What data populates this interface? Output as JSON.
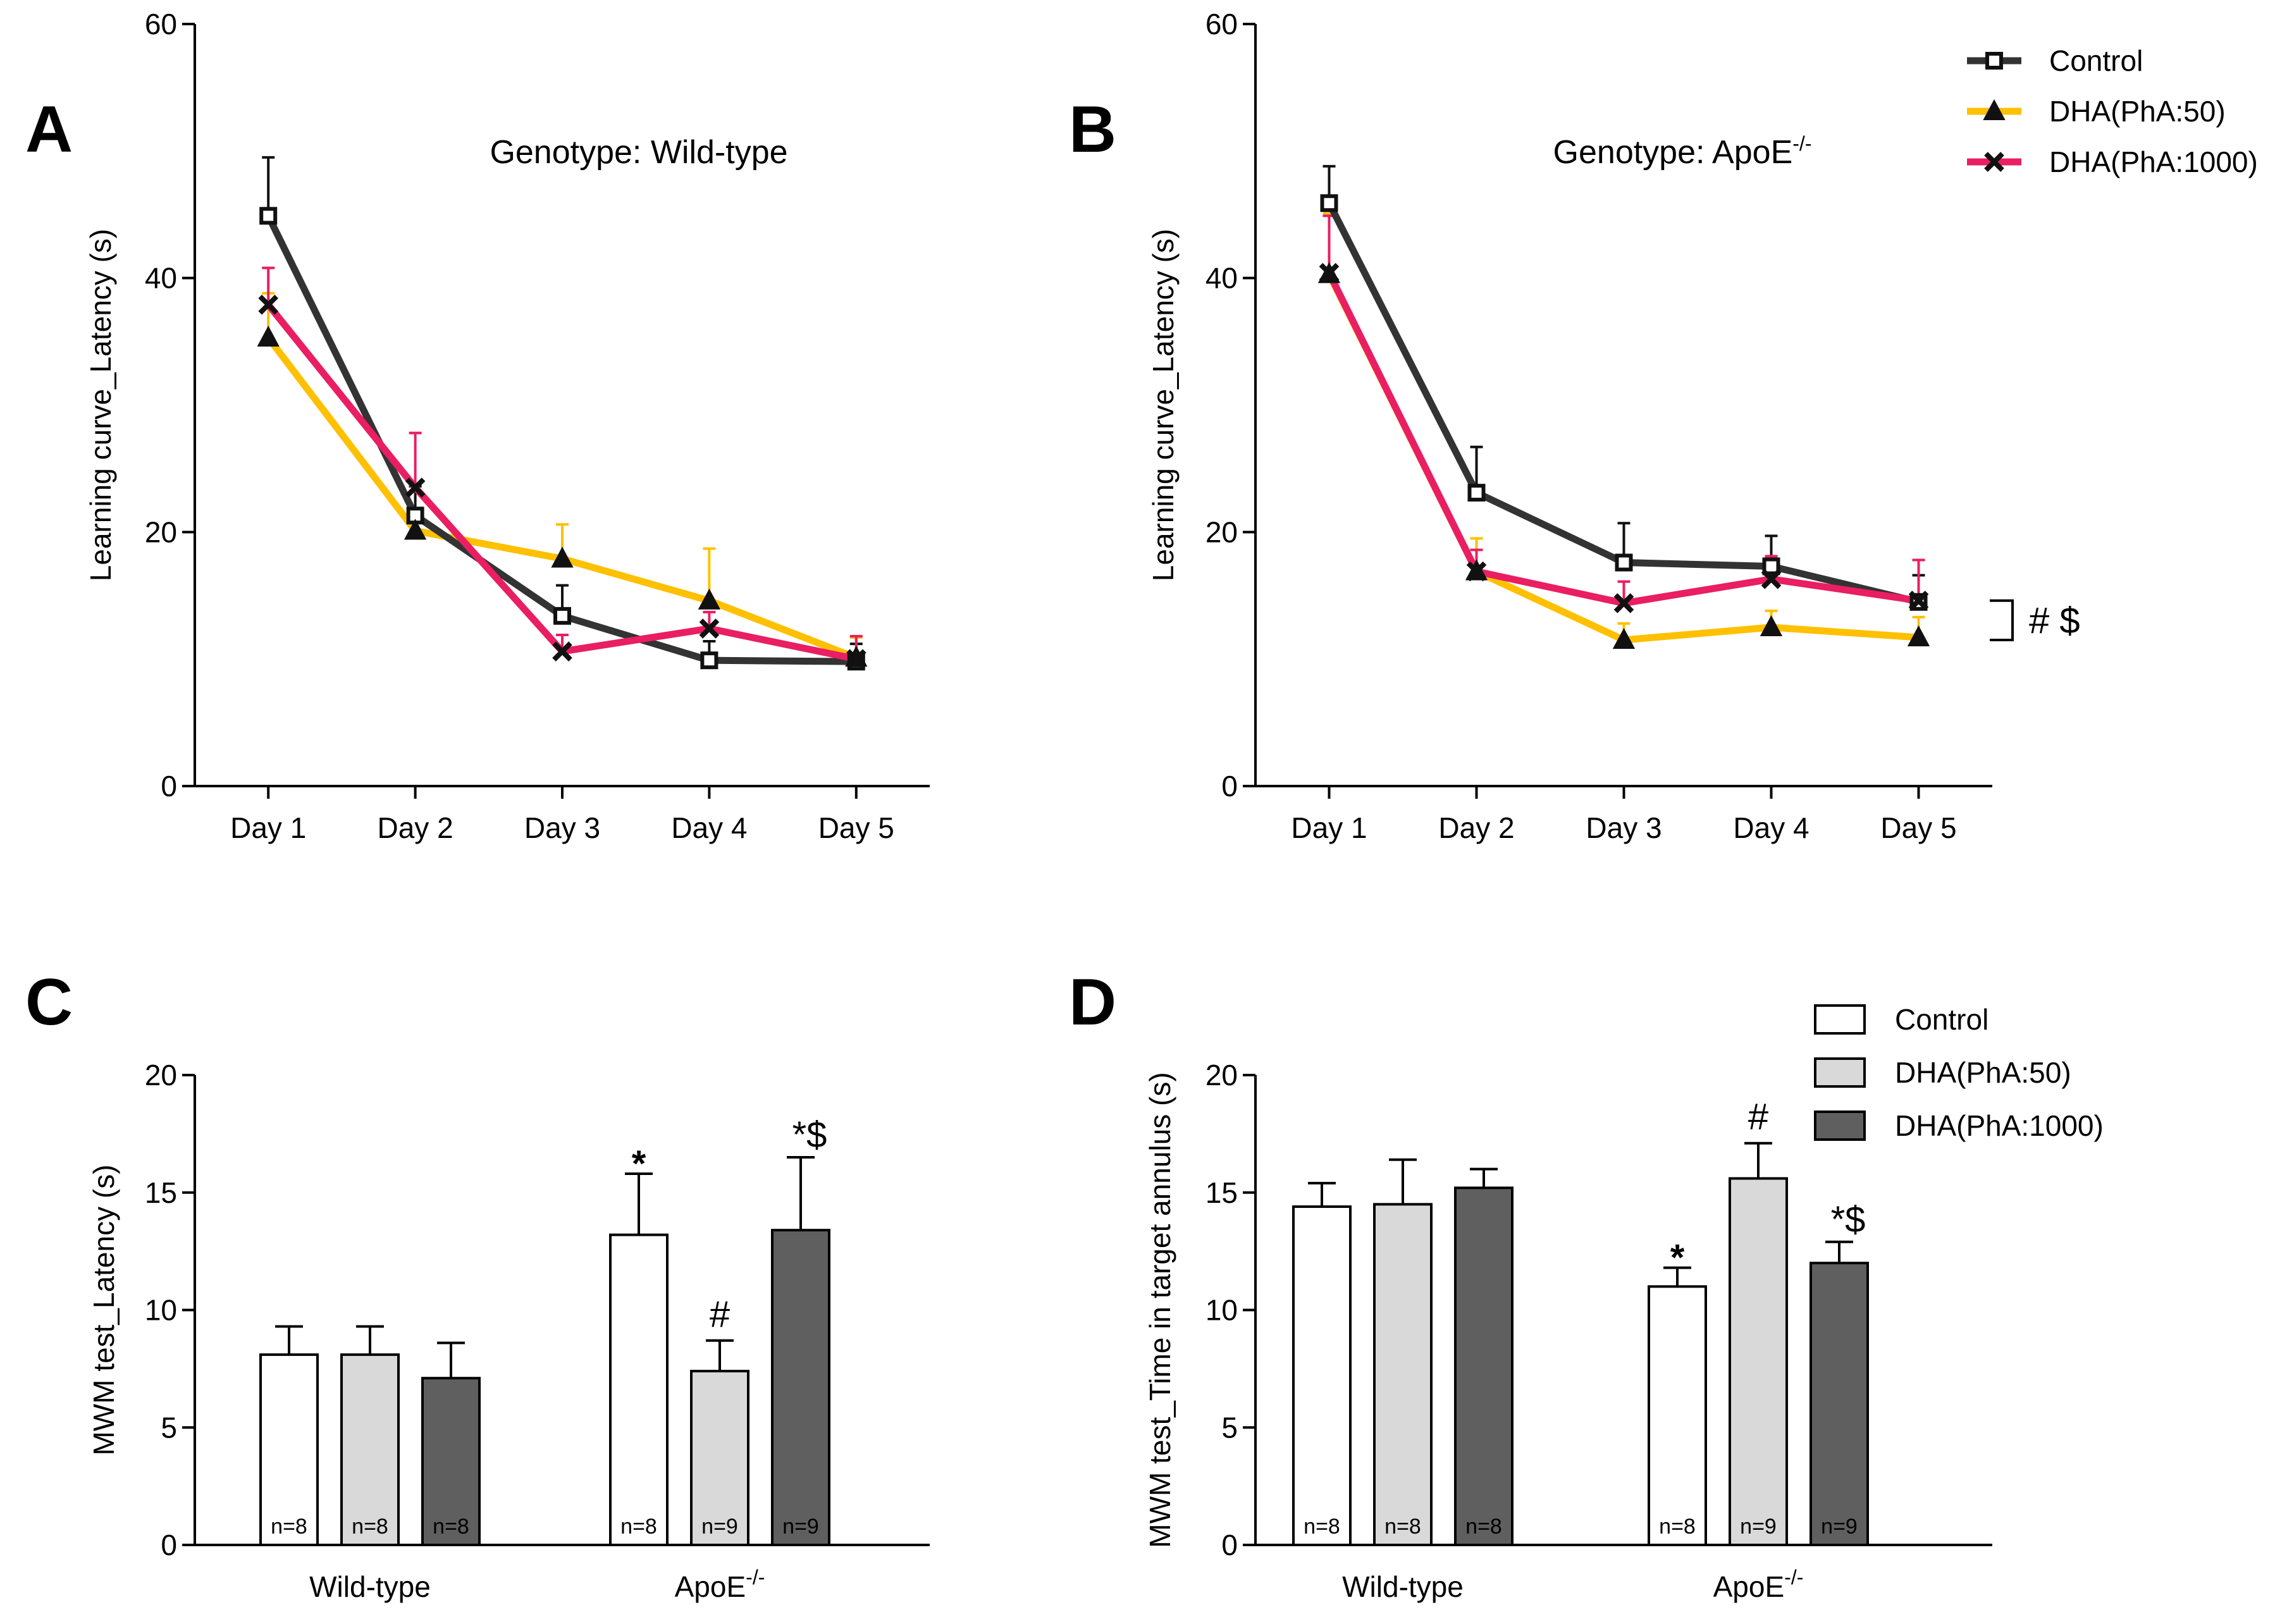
{
  "colors": {
    "control_line": "#333333",
    "dha50_line": "#FFC000",
    "dha1000_line": "#E91E63",
    "control_bar": "#FFFFFF",
    "dha50_bar": "#D9D9D9",
    "dha1000_bar": "#5F5F5F"
  },
  "chart_data": [
    {
      "id": "A",
      "type": "line",
      "panel_label": "A",
      "annotation": "Genotype: Wild-type",
      "ylabel": "Learning curve_Latency (s)",
      "xlabel": "",
      "ylim": [
        0,
        60
      ],
      "yticks": [
        "0",
        "20",
        "40",
        "60"
      ],
      "categories": [
        "Day 1",
        "Day 2",
        "Day 3",
        "Day 4",
        "Day 5"
      ],
      "series": [
        {
          "name": "Control",
          "marker": "square",
          "color": "#333333",
          "values": [
            44.9,
            21.3,
            13.4,
            9.9,
            9.8
          ],
          "errors": [
            4.6,
            2.3,
            2.4,
            1.5,
            1.4
          ]
        },
        {
          "name": "DHA(PhA:50)",
          "marker": "triangle",
          "color": "#FFC000",
          "values": [
            35.3,
            20.1,
            17.9,
            14.6,
            10.1
          ],
          "errors": [
            3.5,
            1.6,
            2.7,
            4.1,
            1.6
          ]
        },
        {
          "name": "DHA(PhA:1000)",
          "marker": "cross",
          "color": "#E91E63",
          "values": [
            37.9,
            23.5,
            10.6,
            12.4,
            10.0
          ],
          "errors": [
            2.9,
            4.3,
            1.3,
            1.3,
            1.8
          ]
        }
      ]
    },
    {
      "id": "B",
      "type": "line",
      "panel_label": "B",
      "annotation_prefix": "Genotype: ApoE",
      "annotation_sup": "-/-",
      "ylabel": "Learning curve_Latency (s)",
      "xlabel": "",
      "ylim": [
        0,
        60
      ],
      "yticks": [
        "0",
        "20",
        "40",
        "60"
      ],
      "categories": [
        "Day 1",
        "Day 2",
        "Day 3",
        "Day 4",
        "Day 5"
      ],
      "significance": "# $",
      "legend": [
        "Control",
        "DHA(PhA:50)",
        "DHA(PhA:1000)"
      ],
      "series": [
        {
          "name": "Control",
          "marker": "square",
          "color": "#333333",
          "values": [
            45.9,
            23.1,
            17.6,
            17.3,
            14.5
          ],
          "errors": [
            2.9,
            3.6,
            3.1,
            2.4,
            2.1
          ]
        },
        {
          "name": "DHA(PhA:50)",
          "marker": "triangle",
          "color": "#FFC000",
          "values": [
            40.3,
            16.9,
            11.5,
            12.5,
            11.7
          ],
          "errors": [
            4.8,
            2.6,
            1.3,
            1.3,
            1.6
          ]
        },
        {
          "name": "DHA(PhA:1000)",
          "marker": "cross",
          "color": "#E91E63",
          "values": [
            40.4,
            16.9,
            14.4,
            16.3,
            14.6
          ],
          "errors": [
            4.5,
            1.7,
            1.7,
            1.8,
            3.2
          ]
        }
      ]
    },
    {
      "id": "C",
      "type": "bar",
      "panel_label": "C",
      "ylabel": "MWM test_Latency (s)",
      "xlabel": "",
      "ylim": [
        0,
        20
      ],
      "yticks": [
        "0",
        "5",
        "10",
        "15",
        "20"
      ],
      "groups": [
        {
          "label": "Wild-type",
          "sup": ""
        },
        {
          "label": "ApoE",
          "sup": "-/-"
        }
      ],
      "series": [
        {
          "name": "Control",
          "color": "#FFFFFF",
          "values": [
            8.1,
            13.2
          ],
          "errors": [
            1.2,
            2.6
          ],
          "n": [
            "n=8",
            "n=8"
          ],
          "marks": [
            "",
            "*"
          ]
        },
        {
          "name": "DHA(PhA:50)",
          "color": "#D9D9D9",
          "values": [
            8.1,
            7.4
          ],
          "errors": [
            1.2,
            1.3
          ],
          "n": [
            "n=8",
            "n=9"
          ],
          "marks": [
            "",
            "#"
          ]
        },
        {
          "name": "DHA(PhA:1000)",
          "color": "#5F5F5F",
          "values": [
            7.1,
            13.4
          ],
          "errors": [
            1.5,
            3.1
          ],
          "n": [
            "n=8",
            "n=9"
          ],
          "marks": [
            "",
            "*$"
          ]
        }
      ]
    },
    {
      "id": "D",
      "type": "bar",
      "panel_label": "D",
      "ylabel": "MWM test_Time in target annulus (s)",
      "xlabel": "",
      "ylim": [
        0,
        20
      ],
      "yticks": [
        "0",
        "5",
        "10",
        "15",
        "20"
      ],
      "legend": [
        "Control",
        "DHA(PhA:50)",
        "DHA(PhA:1000)"
      ],
      "groups": [
        {
          "label": "Wild-type",
          "sup": ""
        },
        {
          "label": "ApoE",
          "sup": "-/-"
        }
      ],
      "series": [
        {
          "name": "Control",
          "color": "#FFFFFF",
          "values": [
            14.4,
            11.0
          ],
          "errors": [
            1.0,
            0.8
          ],
          "n": [
            "n=8",
            "n=8"
          ],
          "marks": [
            "",
            "*"
          ]
        },
        {
          "name": "DHA(PhA:50)",
          "color": "#D9D9D9",
          "values": [
            14.5,
            15.6
          ],
          "errors": [
            1.9,
            1.5
          ],
          "n": [
            "n=8",
            "n=9"
          ],
          "marks": [
            "",
            "#"
          ]
        },
        {
          "name": "DHA(PhA:1000)",
          "color": "#5F5F5F",
          "values": [
            15.2,
            12.0
          ],
          "errors": [
            0.8,
            0.9
          ],
          "n": [
            "n=8",
            "n=9"
          ],
          "marks": [
            "",
            "*$"
          ]
        }
      ]
    }
  ]
}
